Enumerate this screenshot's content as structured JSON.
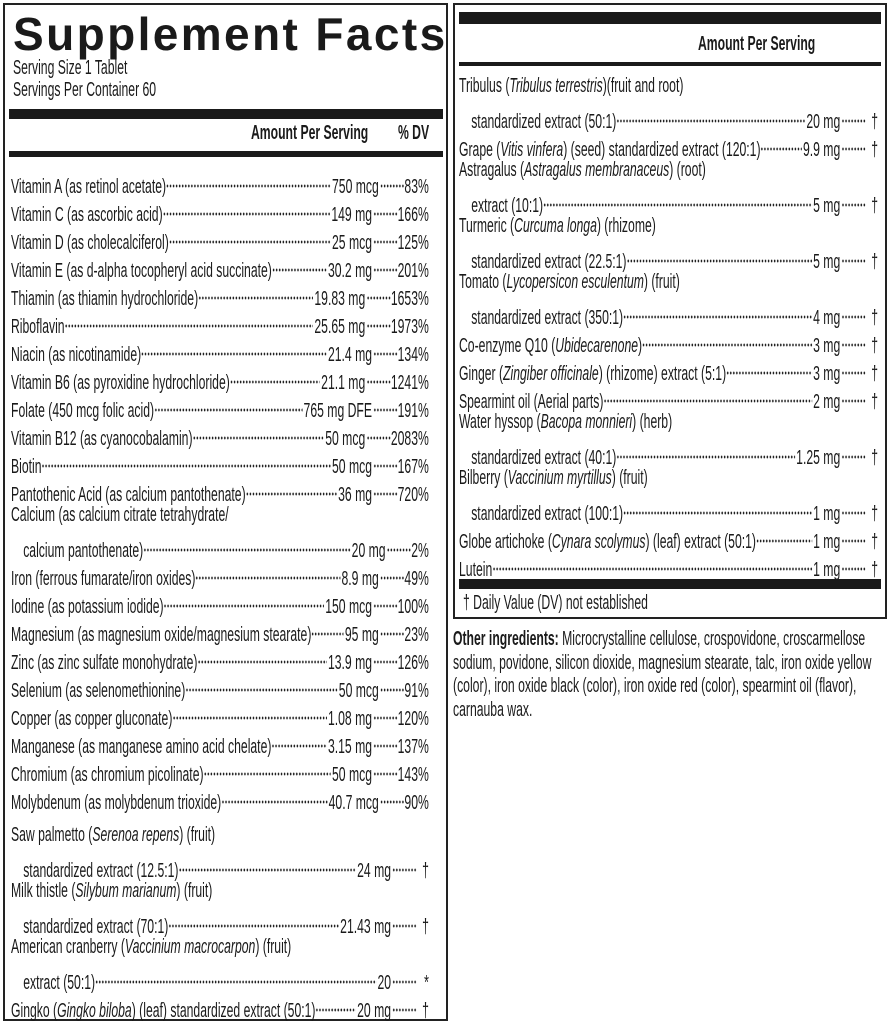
{
  "title": "Supplement Facts",
  "serving_size": "Serving Size 1 Tablet",
  "servings_per_container": "Servings Per Container 60",
  "header": {
    "amount": "Amount Per Serving",
    "dv": "% DV"
  },
  "left_nutrients": [
    {
      "pre": "Vitamin A (as retinol acetate)",
      "amount": "750 mcg",
      "dv": "83%"
    },
    {
      "pre": "Vitamin C (as ascorbic acid)",
      "amount": "149 mg",
      "dv": "166%"
    },
    {
      "pre": "Vitamin D (as cholecalciferol)",
      "amount": "25 mcg",
      "dv": "125%"
    },
    {
      "pre": "Vitamin E (as d-alpha tocopheryl acid succinate)",
      "amount": "30.2 mg",
      "dv": "201%"
    },
    {
      "pre": "Thiamin (as thiamin hydrochloride)",
      "amount": "19.83 mg",
      "dv": "1653%"
    },
    {
      "pre": "Riboflavin",
      "amount": "25.65 mg",
      "dv": "1973%"
    },
    {
      "pre": "Niacin (as nicotinamide)",
      "amount": "21.4 mg",
      "dv": "134%"
    },
    {
      "pre": "Vitamin B6 (as pyroxidine hydrochloride)",
      "amount": "21.1 mg",
      "dv": "1241%"
    },
    {
      "pre": "Folate (450 mcg folic acid)",
      "amount": "765 mg DFE",
      "dv": "191%"
    },
    {
      "pre": "Vitamin B12 (as cyanocobalamin)",
      "amount": "50 mcg",
      "dv": "2083%"
    },
    {
      "pre": "Biotin",
      "amount": "50 mcg",
      "dv": "167%"
    },
    {
      "pre": "Pantothenic Acid (as calcium pantothenate)",
      "amount": "36 mg",
      "dv": "720%"
    },
    {
      "pre": "Calcium (as calcium citrate tetrahydrate/",
      "line2": "calcium pantothenate)",
      "amount": "20 mg",
      "dv": "2%"
    },
    {
      "pre": "Iron (ferrous fumarate/iron oxides)",
      "amount": "8.9 mg",
      "dv": "49%"
    },
    {
      "pre": "Iodine (as potassium iodide)",
      "amount": "150 mcg",
      "dv": "100%"
    },
    {
      "pre": "Magnesium (as magnesium oxide/magnesium stearate)",
      "amount": "95 mg",
      "dv": "23%"
    },
    {
      "pre": "Zinc (as zinc sulfate monohydrate)",
      "amount": "13.9 mg",
      "dv": "126%"
    },
    {
      "pre": "Selenium (as selenomethionine)",
      "amount": "50 mcg",
      "dv": "91%"
    },
    {
      "pre": "Copper (as copper gluconate)",
      "amount": "1.08 mg",
      "dv": "120%"
    },
    {
      "pre": "Manganese (as manganese amino acid chelate)",
      "amount": "3.15 mg",
      "dv": "137%"
    },
    {
      "pre": "Chromium (as chromium picolinate)",
      "amount": "50 mcg",
      "dv": "143%"
    },
    {
      "pre": "Molybdenum (as molybdenum trioxide)",
      "amount": "40.7 mcg",
      "dv": "90%"
    }
  ],
  "left_botanicals": [
    {
      "pre": "Saw palmetto (",
      "italic": "Serenoa repens",
      "post": ") (fruit)",
      "line2": "standardized extract (12.5:1)",
      "amount": "24 mg",
      "dv": "†"
    },
    {
      "pre": "Milk thistle (",
      "italic": "Silybum marianum",
      "post": ") (fruit)",
      "line2": "standardized extract (70:1)",
      "amount": "21.43 mg",
      "dv": "†"
    },
    {
      "pre": "American cranberry (",
      "italic": "Vaccinium macrocarpon",
      "post": ") (fruit)",
      "line2": "extract (50:1)",
      "amount": "20",
      "dv": "*"
    },
    {
      "pre": "Gingko (",
      "italic": "Gingko biloba",
      "post": ") (leaf) standardized extract (50:1)",
      "amount": "20 mg",
      "dv": "†"
    }
  ],
  "right_botanicals": [
    {
      "pre": "Tribulus (",
      "italic": "Tribulus terrestris",
      "post": ")(fruit and root)",
      "line2": "standardized extract (50:1)",
      "amount": "20 mg",
      "dv": "†"
    },
    {
      "pre": "Grape (",
      "italic": "Vitis vinfera",
      "post": ") (seed) standardized extract (120:1)",
      "amount": "9.9 mg",
      "dv": "†"
    },
    {
      "pre": "Astragalus (",
      "italic": "Astragalus membranaceus",
      "post": ") (root)",
      "line2": "extract (10:1)",
      "amount": "5 mg",
      "dv": "†"
    },
    {
      "pre": "Turmeric (",
      "italic": "Curcuma longa",
      "post": ") (rhizome)",
      "line2": "standardized extract (22.5:1)",
      "amount": "5 mg",
      "dv": "†"
    },
    {
      "pre": "Tomato (",
      "italic": "Lycopersicon esculentum",
      "post": ") (fruit)",
      "line2": "standardized extract (350:1)",
      "amount": "4 mg",
      "dv": "†"
    },
    {
      "pre": "Co-enzyme Q10 (",
      "italic": "Ubidecarenone",
      "post": ")",
      "amount": "3 mg",
      "dv": "†"
    },
    {
      "pre": "Ginger (",
      "italic": "Zingiber officinale",
      "post": ") (rhizome) extract (5:1)",
      "amount": "3 mg",
      "dv": "†"
    },
    {
      "pre": "Spearmint oil (Aerial parts)",
      "amount": "2 mg",
      "dv": "†"
    },
    {
      "pre": "Water hyssop (",
      "italic": "Bacopa monnieri",
      "post": ") (herb)",
      "line2": "standardized extract (40:1)",
      "amount": "1.25 mg",
      "dv": "†"
    },
    {
      "pre": "Bilberry (",
      "italic": "Vaccinium myrtillus",
      "post": ") (fruit)",
      "line2": "standardized extract (100:1)",
      "amount": "1 mg",
      "dv": "†"
    },
    {
      "pre": "Globe artichoke (",
      "italic": "Cynara scolymus",
      "post": ") (leaf) extract (50:1)",
      "amount": "1 mg",
      "dv": "†"
    },
    {
      "pre": "Lutein",
      "amount": "1 mg",
      "dv": "†"
    }
  ],
  "footnote": "† Daily Value (DV) not established",
  "other_ingredients": {
    "label": "Other ingredients:",
    "text": " Microcrystalline cellulose, crospovidone, croscarmellose sodium, povidone, silicon dioxide, magnesium stearate, talc, iron oxide yellow (color), iron oxide black (color), iron oxide red (color), spearmint oil (flavor), carnauba wax."
  }
}
